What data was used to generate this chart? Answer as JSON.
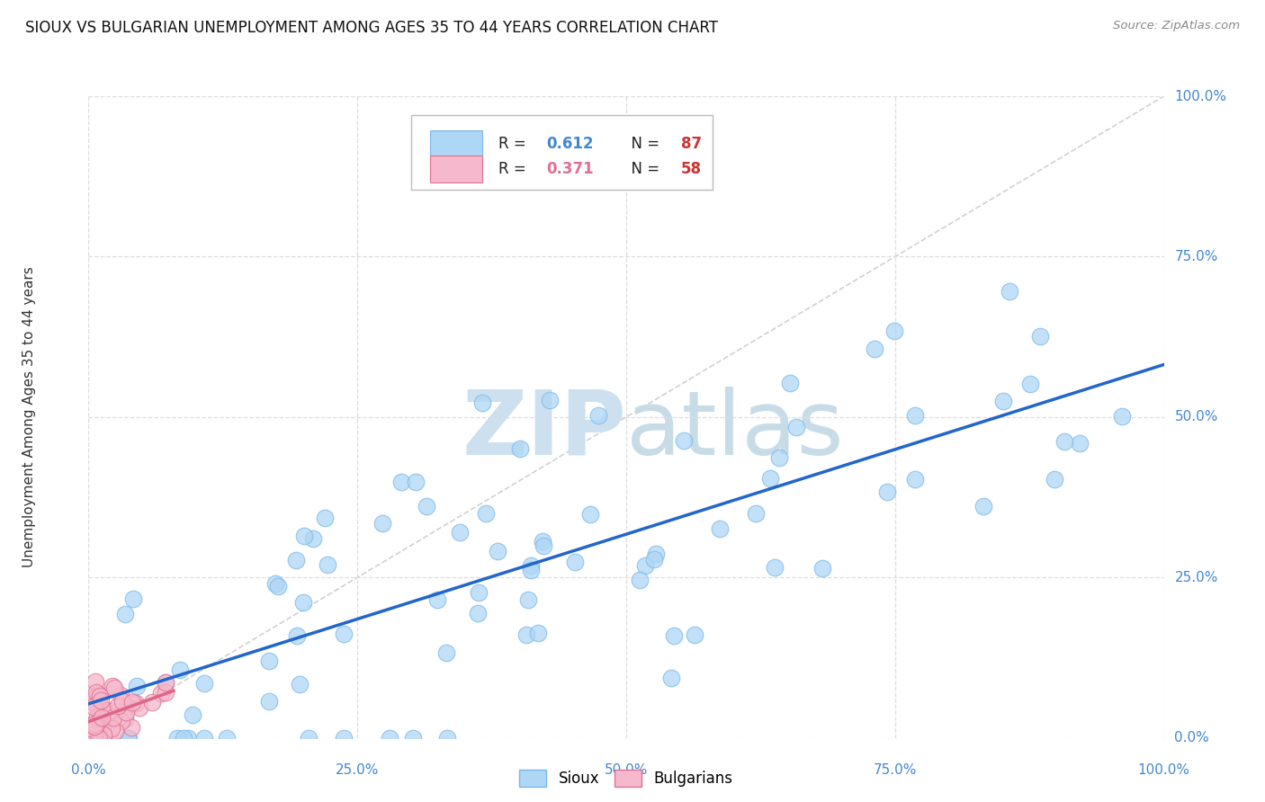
{
  "title": "SIOUX VS BULGARIAN UNEMPLOYMENT AMONG AGES 35 TO 44 YEARS CORRELATION CHART",
  "source": "Source: ZipAtlas.com",
  "ylabel": "Unemployment Among Ages 35 to 44 years",
  "sioux_R": 0.612,
  "sioux_N": 87,
  "bulg_R": 0.371,
  "bulg_N": 58,
  "sioux_color": "#aed6f5",
  "sioux_edge_color": "#7ab8e8",
  "bulg_color": "#f5b8cc",
  "bulg_edge_color": "#e07090",
  "sioux_line_color": "#2266cc",
  "bulg_line_color": "#dd6688",
  "diagonal_color": "#cccccc",
  "tick_color": "#4488cc",
  "grid_color": "#dddddd",
  "bg_color": "#ffffff",
  "watermark_zip_color": "#cce0f0",
  "watermark_atlas_color": "#c8dce8"
}
